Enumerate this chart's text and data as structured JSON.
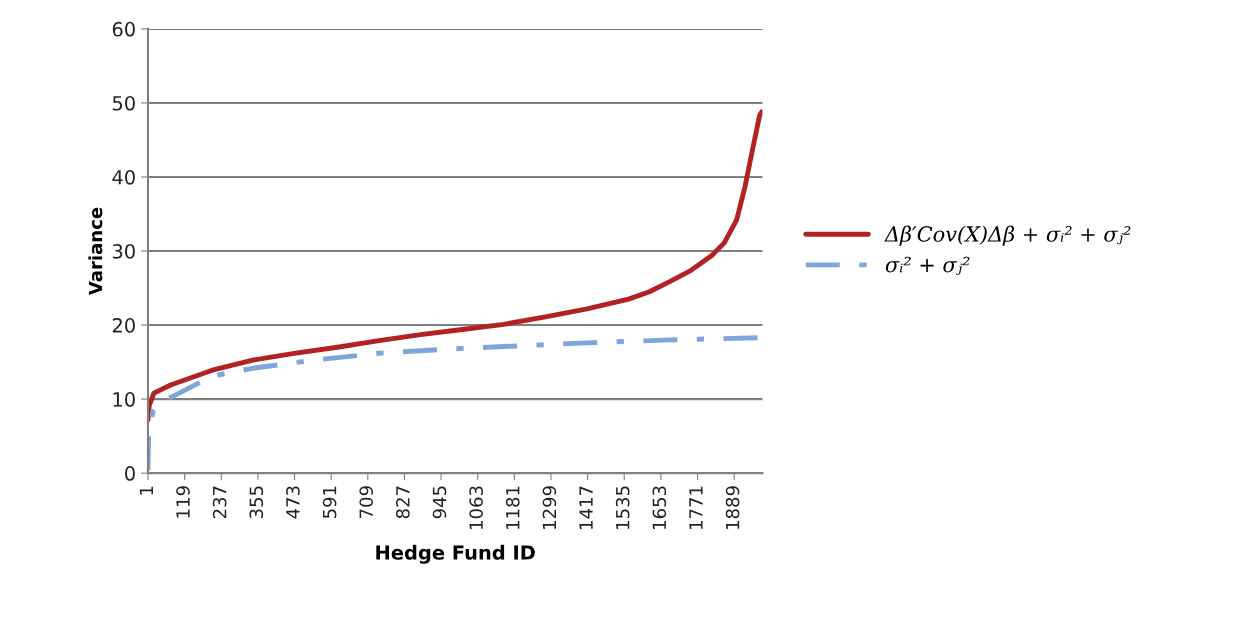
{
  "chart_data": {
    "type": "line",
    "xlabel": "Hedge Fund ID",
    "ylabel": "Variance",
    "xlim": [
      1,
      1980
    ],
    "xticks": [
      1,
      119,
      237,
      355,
      473,
      591,
      709,
      827,
      945,
      1063,
      1181,
      1299,
      1417,
      1535,
      1653,
      1771,
      1889
    ],
    "ylim": [
      0,
      60
    ],
    "yticks": [
      0,
      10,
      20,
      30,
      40,
      50,
      60
    ],
    "grid": "y",
    "legend": "right",
    "series": [
      {
        "name": "Δβ′Cov(X)Δβ + σᵢ² + σⱼ²",
        "color": "#b22222",
        "line_style": "solid",
        "x": [
          1,
          5,
          20,
          74,
          208,
          342,
          477,
          611,
          745,
          879,
          1013,
          1147,
          1281,
          1415,
          1549,
          1616,
          1683,
          1750,
          1817,
          1857,
          1897,
          1924,
          1951,
          1971,
          1978
        ],
        "values": [
          7.2,
          9.1,
          10.8,
          11.9,
          13.9,
          15.3,
          16.2,
          17.0,
          17.9,
          18.7,
          19.4,
          20.1,
          21.1,
          22.2,
          23.5,
          24.5,
          25.9,
          27.4,
          29.4,
          31.1,
          34.2,
          38.7,
          44.3,
          48.3,
          48.8
        ]
      },
      {
        "name": "σᵢ² + σⱼ²",
        "color": "#7ea6dc",
        "line_style": "dashed",
        "x": [
          1,
          3,
          17,
          64,
          208,
          342,
          544,
          745,
          946,
          1147,
          1415,
          1683,
          1978
        ],
        "values": [
          0.4,
          4.9,
          8.3,
          10.0,
          13.1,
          14.2,
          15.3,
          16.2,
          16.7,
          17.1,
          17.6,
          18.0,
          18.3
        ]
      }
    ]
  }
}
